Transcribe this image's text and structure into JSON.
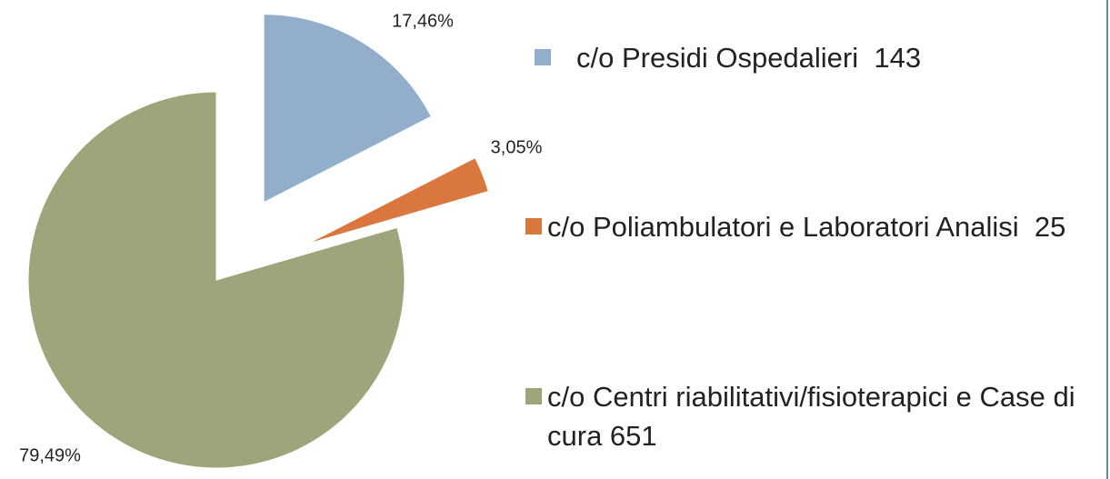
{
  "chart_data": {
    "type": "pie",
    "categories": [
      "c/o Presidi Ospedalieri  143",
      "c/o Poliambulatori e Laboratori Analisi  25",
      "c/o Centri riabilitativi/fisioterapici e Case di cura 651"
    ],
    "values": [
      17.46,
      3.05,
      79.49
    ],
    "value_labels": [
      "17,46%",
      "3,05%",
      "79,49%"
    ],
    "colors": [
      "#93aecb",
      "#d9773e",
      "#9ea57a"
    ]
  }
}
